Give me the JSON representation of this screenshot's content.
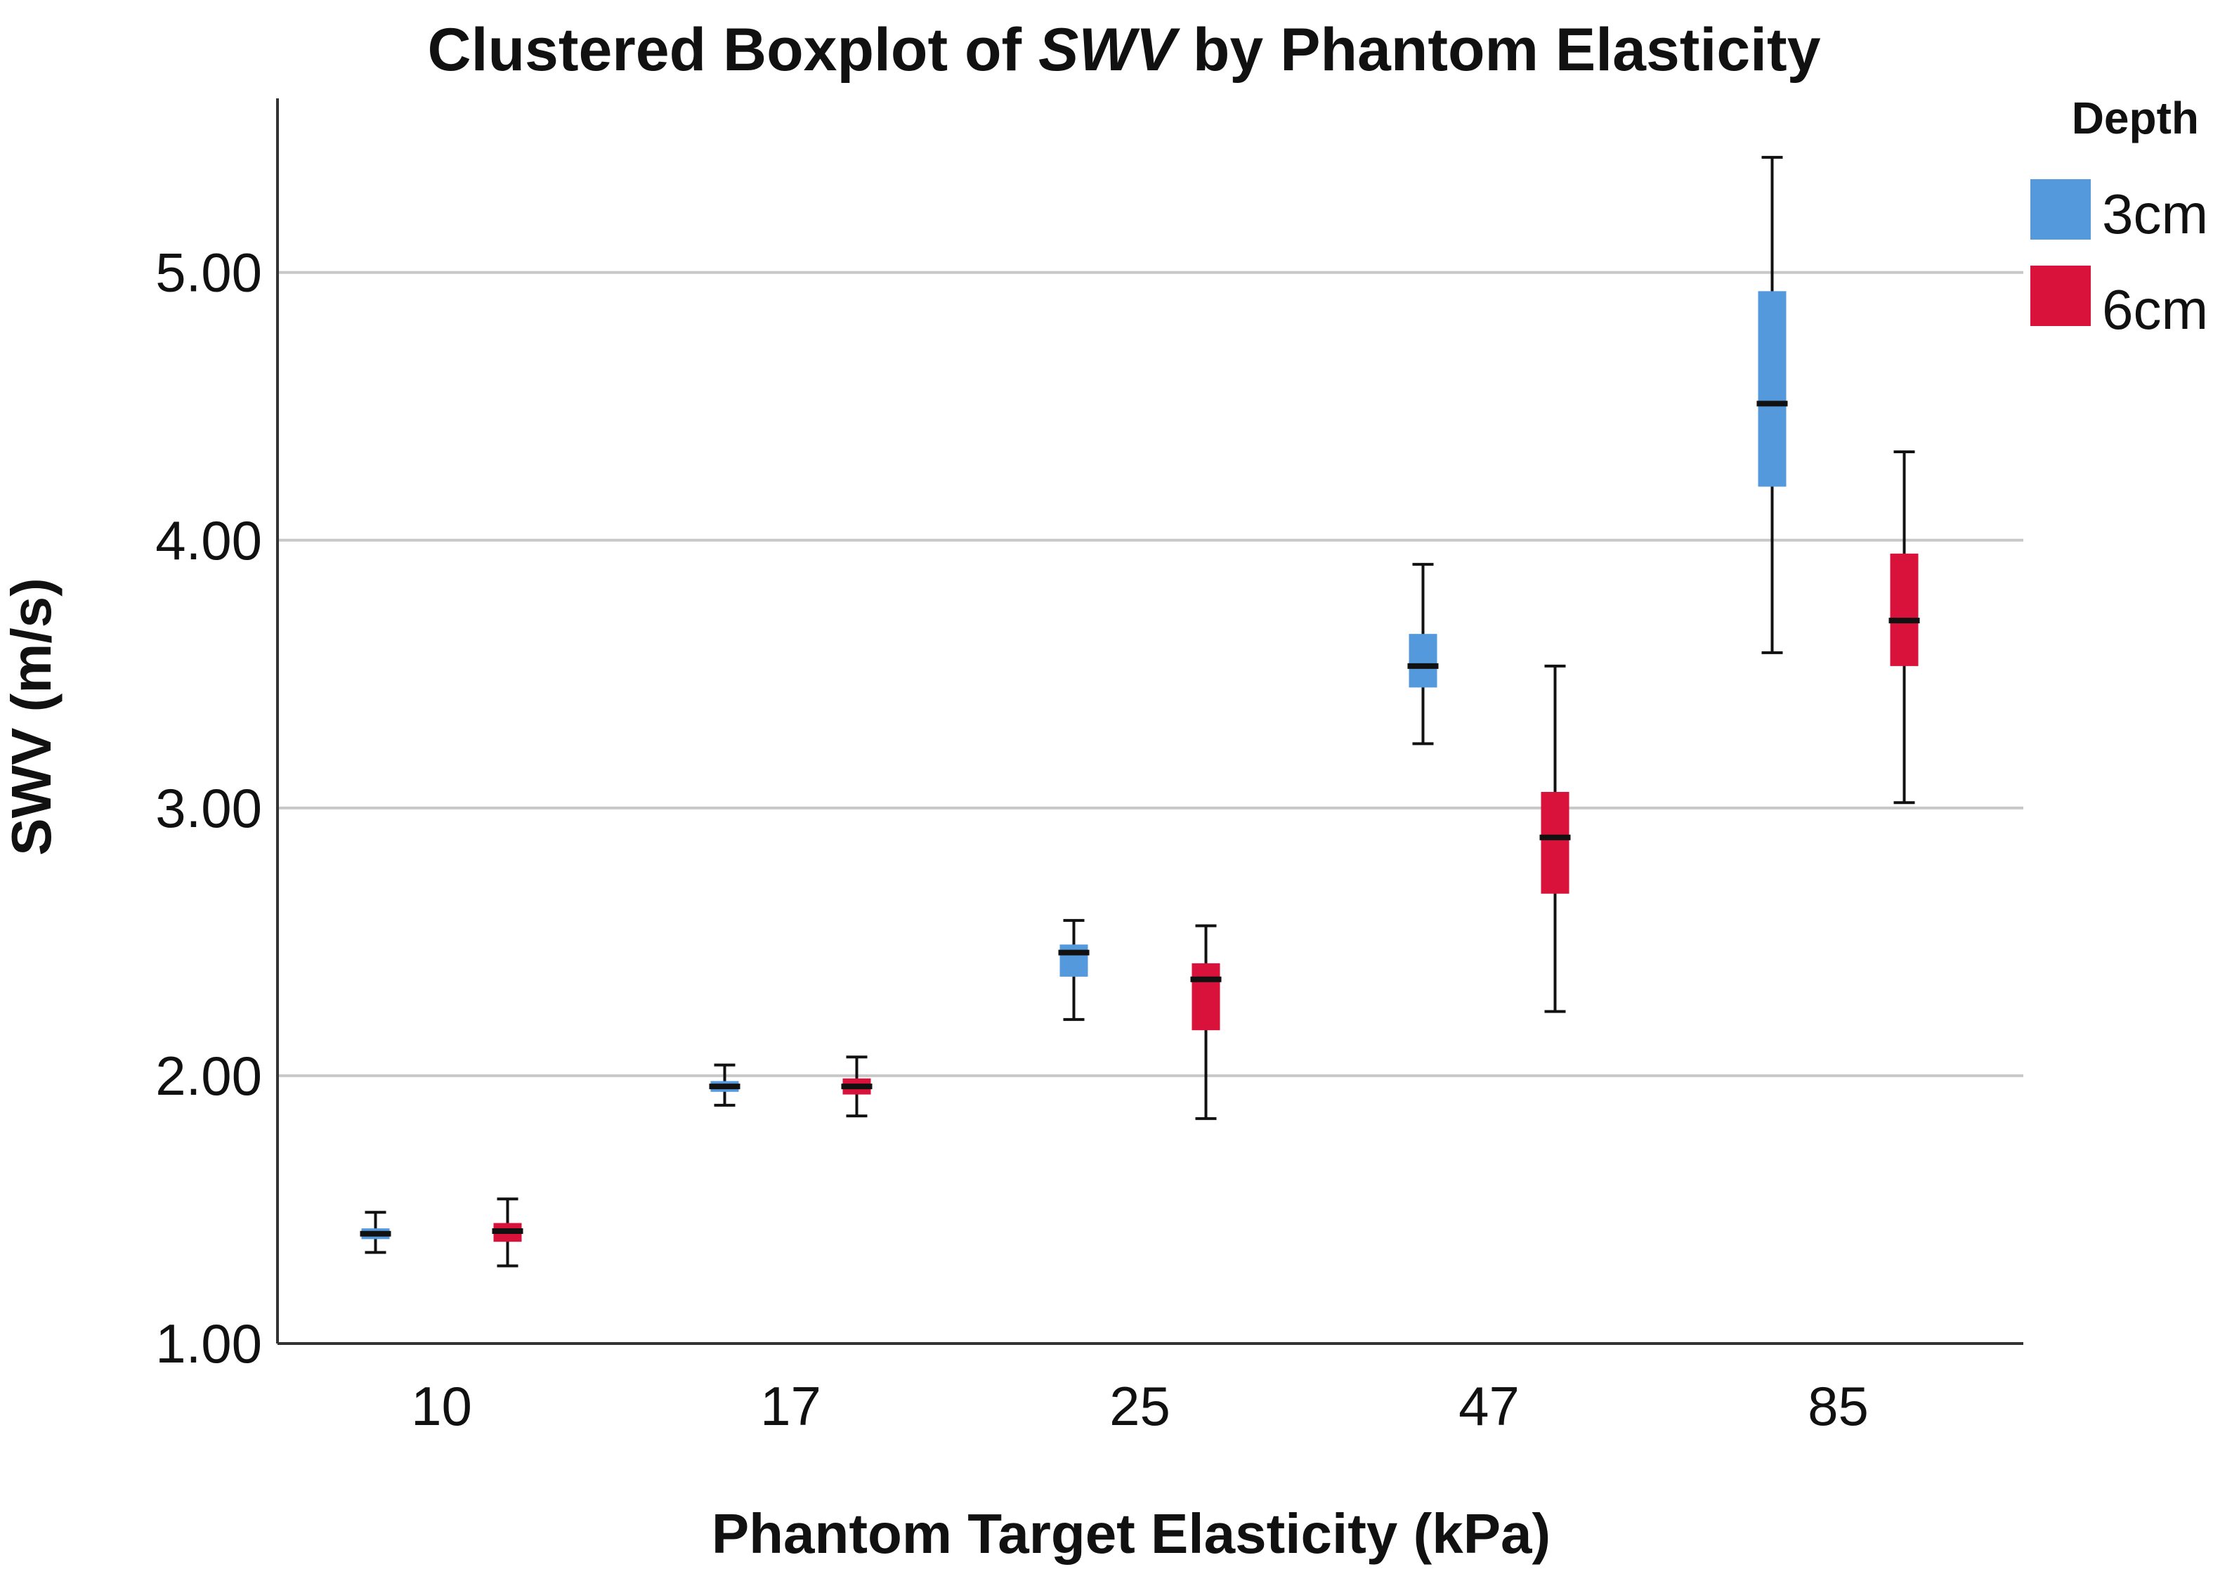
{
  "chart_data": {
    "type": "boxplot",
    "title_parts": {
      "before": "Clustered Boxplot of ",
      "emph": "SWV",
      "after": " by Phantom Elasticity"
    },
    "xlabel": "Phantom Target Elasticity (kPa)",
    "ylabel": "SWV (m/s)",
    "ylim": [
      1.0,
      5.65
    ],
    "yticks": [
      {
        "value": 1.0,
        "label": "1.00"
      },
      {
        "value": 2.0,
        "label": "2.00"
      },
      {
        "value": 3.0,
        "label": "3.00"
      },
      {
        "value": 4.0,
        "label": "4.00"
      },
      {
        "value": 5.0,
        "label": "5.00"
      }
    ],
    "grid": true,
    "categories": [
      "10",
      "17",
      "25",
      "47",
      "85"
    ],
    "legend": {
      "title": "Depth",
      "position": "top-right"
    },
    "series": [
      {
        "name": "3cm",
        "color": "#5599dd",
        "boxes": [
          {
            "min": 1.34,
            "q1": 1.39,
            "median": 1.41,
            "q3": 1.43,
            "max": 1.49
          },
          {
            "min": 1.89,
            "q1": 1.94,
            "median": 1.96,
            "q3": 1.98,
            "max": 2.04
          },
          {
            "min": 2.21,
            "q1": 2.37,
            "median": 2.46,
            "q3": 2.49,
            "max": 2.58
          },
          {
            "min": 3.24,
            "q1": 3.45,
            "median": 3.53,
            "q3": 3.65,
            "max": 3.91
          },
          {
            "min": 3.58,
            "q1": 4.2,
            "median": 4.51,
            "q3": 4.93,
            "max": 5.43
          }
        ]
      },
      {
        "name": "6cm",
        "color": "#d8123a",
        "boxes": [
          {
            "min": 1.29,
            "q1": 1.38,
            "median": 1.42,
            "q3": 1.45,
            "max": 1.54
          },
          {
            "min": 1.85,
            "q1": 1.93,
            "median": 1.96,
            "q3": 1.99,
            "max": 2.07
          },
          {
            "min": 1.84,
            "q1": 2.17,
            "median": 2.36,
            "q3": 2.42,
            "max": 2.56
          },
          {
            "min": 2.24,
            "q1": 2.68,
            "median": 2.89,
            "q3": 3.06,
            "max": 3.53
          },
          {
            "min": 3.02,
            "q1": 3.53,
            "median": 3.7,
            "q3": 3.95,
            "max": 4.33
          }
        ]
      }
    ]
  }
}
